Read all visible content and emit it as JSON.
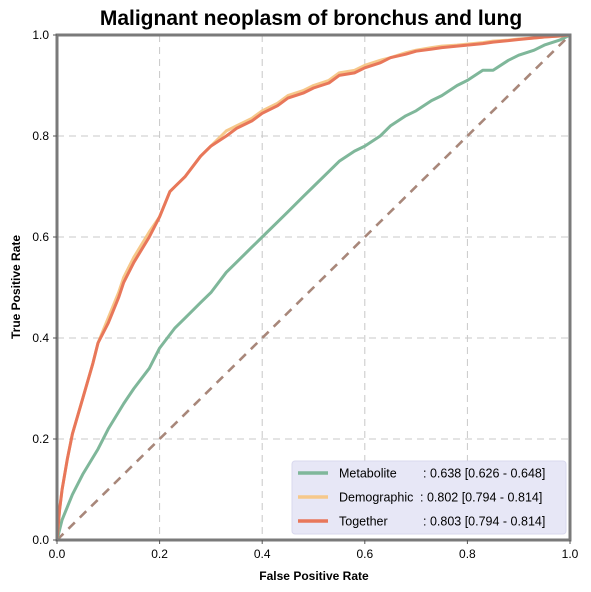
{
  "chart_data": {
    "type": "line",
    "title": "Malignant neoplasm of bronchus and lung",
    "xlabel": "False Positive Rate",
    "ylabel": "True Positive Rate",
    "xlim": [
      0,
      1
    ],
    "ylim": [
      0,
      1
    ],
    "xticks": [
      "0.0",
      "0.2",
      "0.4",
      "0.6",
      "0.8",
      "1.0"
    ],
    "yticks": [
      "0.0",
      "0.2",
      "0.4",
      "0.6",
      "0.8",
      "1.0"
    ],
    "grid": true,
    "legend_position": "lower-right",
    "series": [
      {
        "name": "Metabolite",
        "stat_label": ": 0.638 [0.626 - 0.648]",
        "color": "#7fb79a",
        "x": [
          0,
          0.01,
          0.03,
          0.05,
          0.08,
          0.1,
          0.13,
          0.15,
          0.18,
          0.2,
          0.23,
          0.25,
          0.28,
          0.3,
          0.33,
          0.35,
          0.38,
          0.4,
          0.43,
          0.45,
          0.48,
          0.5,
          0.53,
          0.55,
          0.58,
          0.6,
          0.63,
          0.65,
          0.68,
          0.7,
          0.73,
          0.75,
          0.78,
          0.8,
          0.83,
          0.85,
          0.88,
          0.9,
          0.93,
          0.95,
          0.98,
          1.0
        ],
        "y": [
          0,
          0.04,
          0.09,
          0.13,
          0.18,
          0.22,
          0.27,
          0.3,
          0.34,
          0.38,
          0.42,
          0.44,
          0.47,
          0.49,
          0.53,
          0.55,
          0.58,
          0.6,
          0.63,
          0.65,
          0.68,
          0.7,
          0.73,
          0.75,
          0.77,
          0.78,
          0.8,
          0.82,
          0.84,
          0.85,
          0.87,
          0.88,
          0.9,
          0.91,
          0.93,
          0.93,
          0.95,
          0.96,
          0.97,
          0.98,
          0.99,
          1.0
        ]
      },
      {
        "name": "Demographic",
        "stat_label": ": 0.802 [0.794 - 0.814]",
        "color": "#f6c88a",
        "x": [
          0,
          0.005,
          0.01,
          0.02,
          0.03,
          0.05,
          0.07,
          0.08,
          0.1,
          0.12,
          0.13,
          0.15,
          0.18,
          0.2,
          0.22,
          0.23,
          0.25,
          0.28,
          0.3,
          0.33,
          0.35,
          0.38,
          0.4,
          0.43,
          0.45,
          0.48,
          0.5,
          0.53,
          0.55,
          0.58,
          0.6,
          0.63,
          0.65,
          0.68,
          0.7,
          0.73,
          0.75,
          0.78,
          0.8,
          0.83,
          0.85,
          0.88,
          0.9,
          0.93,
          0.95,
          0.98,
          1.0
        ],
        "y": [
          0,
          0.06,
          0.1,
          0.16,
          0.21,
          0.28,
          0.35,
          0.39,
          0.44,
          0.49,
          0.52,
          0.56,
          0.61,
          0.64,
          0.69,
          0.7,
          0.72,
          0.76,
          0.78,
          0.81,
          0.82,
          0.835,
          0.85,
          0.865,
          0.88,
          0.89,
          0.9,
          0.91,
          0.925,
          0.93,
          0.94,
          0.95,
          0.955,
          0.965,
          0.97,
          0.975,
          0.978,
          0.98,
          0.982,
          0.985,
          0.988,
          0.99,
          0.992,
          0.994,
          0.996,
          0.998,
          1.0
        ]
      },
      {
        "name": "Together",
        "stat_label": ": 0.803 [0.794 - 0.814]",
        "color": "#e8775a",
        "x": [
          0,
          0.005,
          0.01,
          0.02,
          0.03,
          0.05,
          0.07,
          0.08,
          0.1,
          0.12,
          0.13,
          0.15,
          0.18,
          0.2,
          0.22,
          0.23,
          0.25,
          0.28,
          0.3,
          0.33,
          0.35,
          0.38,
          0.4,
          0.43,
          0.45,
          0.48,
          0.5,
          0.53,
          0.55,
          0.58,
          0.6,
          0.63,
          0.65,
          0.68,
          0.7,
          0.73,
          0.75,
          0.78,
          0.8,
          0.83,
          0.85,
          0.88,
          0.9,
          0.93,
          0.95,
          0.98,
          1.0
        ],
        "y": [
          0,
          0.06,
          0.1,
          0.16,
          0.21,
          0.28,
          0.35,
          0.39,
          0.43,
          0.48,
          0.51,
          0.55,
          0.6,
          0.64,
          0.69,
          0.7,
          0.72,
          0.76,
          0.78,
          0.8,
          0.815,
          0.83,
          0.845,
          0.86,
          0.875,
          0.885,
          0.895,
          0.905,
          0.92,
          0.925,
          0.935,
          0.945,
          0.955,
          0.962,
          0.968,
          0.972,
          0.975,
          0.978,
          0.98,
          0.983,
          0.986,
          0.989,
          0.991,
          0.994,
          0.996,
          0.998,
          1.0
        ]
      },
      {
        "name": "",
        "role": "chance-diagonal",
        "color": "#a8877a",
        "dashed": true,
        "x": [
          0,
          1
        ],
        "y": [
          0,
          1
        ]
      }
    ]
  }
}
